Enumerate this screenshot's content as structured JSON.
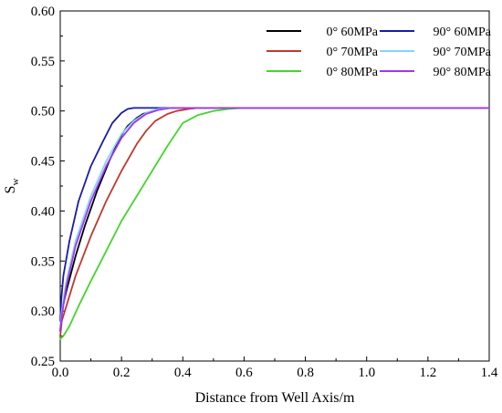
{
  "chart_data": {
    "type": "line",
    "title": "",
    "xlabel": "Distance from Well Axis/m",
    "ylabel_main": "S",
    "ylabel_sub": "w",
    "xlim": [
      0,
      1.4
    ],
    "ylim": [
      0.25,
      0.6
    ],
    "xticks": [
      "0.0",
      "0.2",
      "0.4",
      "0.6",
      "0.8",
      "1.0",
      "1.2",
      "1.4"
    ],
    "yticks": [
      "0.25",
      "0.30",
      "0.35",
      "0.40",
      "0.45",
      "0.50",
      "0.55",
      "0.60"
    ],
    "grid": false,
    "legend_placement": "top-right",
    "series": [
      {
        "name": "0° 60MPa",
        "color": "#000000",
        "x": [
          0.0,
          0.005,
          0.02,
          0.05,
          0.08,
          0.12,
          0.16,
          0.2,
          0.22,
          0.25,
          0.27,
          0.3,
          0.33,
          0.35,
          0.4,
          1.4
        ],
        "y": [
          0.28,
          0.3,
          0.32,
          0.355,
          0.385,
          0.42,
          0.45,
          0.476,
          0.485,
          0.493,
          0.497,
          0.5,
          0.502,
          0.503,
          0.503,
          0.503
        ]
      },
      {
        "name": "0° 70MPa",
        "color": "#c0392b",
        "x": [
          0.0,
          0.005,
          0.02,
          0.05,
          0.1,
          0.15,
          0.2,
          0.25,
          0.28,
          0.31,
          0.35,
          0.38,
          0.42,
          0.45,
          1.4
        ],
        "y": [
          0.275,
          0.29,
          0.305,
          0.335,
          0.375,
          0.41,
          0.44,
          0.467,
          0.48,
          0.49,
          0.497,
          0.5,
          0.502,
          0.503,
          0.503
        ]
      },
      {
        "name": "0° 80MPa",
        "color": "#44d62c",
        "x": [
          0.0,
          0.01,
          0.03,
          0.06,
          0.1,
          0.15,
          0.2,
          0.25,
          0.3,
          0.35,
          0.4,
          0.45,
          0.5,
          0.55,
          0.6,
          1.4
        ],
        "y": [
          0.272,
          0.275,
          0.285,
          0.305,
          0.33,
          0.36,
          0.39,
          0.415,
          0.44,
          0.465,
          0.488,
          0.496,
          0.5,
          0.502,
          0.503,
          0.503
        ]
      },
      {
        "name": "90° 60MPa",
        "color": "#1a1aaa",
        "x": [
          0.0,
          0.003,
          0.01,
          0.03,
          0.06,
          0.1,
          0.14,
          0.17,
          0.2,
          0.22,
          0.24,
          0.3,
          1.4
        ],
        "y": [
          0.29,
          0.31,
          0.335,
          0.37,
          0.41,
          0.445,
          0.47,
          0.488,
          0.498,
          0.502,
          0.503,
          0.503,
          0.503
        ]
      },
      {
        "name": "90° 70MPa",
        "color": "#7fd6ff",
        "x": [
          0.0,
          0.005,
          0.02,
          0.05,
          0.1,
          0.15,
          0.2,
          0.24,
          0.28,
          0.32,
          0.36,
          1.4
        ],
        "y": [
          0.285,
          0.3,
          0.33,
          0.37,
          0.415,
          0.45,
          0.477,
          0.49,
          0.498,
          0.502,
          0.503,
          0.503
        ]
      },
      {
        "name": "90° 80MPa",
        "color": "#a335f0",
        "x": [
          0.0,
          0.005,
          0.02,
          0.05,
          0.1,
          0.15,
          0.2,
          0.24,
          0.28,
          0.32,
          0.36,
          1.4
        ],
        "y": [
          0.28,
          0.295,
          0.325,
          0.365,
          0.41,
          0.445,
          0.473,
          0.488,
          0.497,
          0.501,
          0.503,
          0.503
        ]
      }
    ]
  }
}
